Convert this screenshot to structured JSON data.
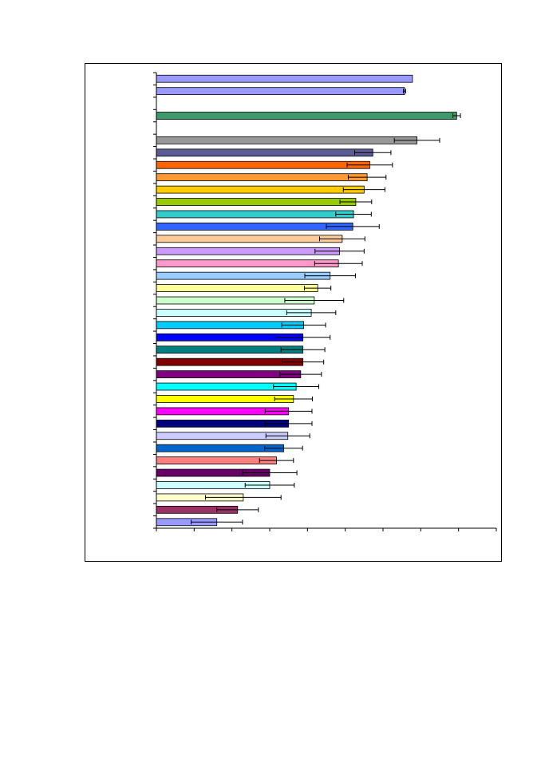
{
  "chart_data": {
    "type": "bar",
    "orientation": "horizontal",
    "title": "",
    "xlabel": "",
    "ylabel": "",
    "xlim": [
      0,
      9
    ],
    "x_tick_step": 1,
    "grid": false,
    "legend": "none",
    "series": [
      {
        "color": "#9999ff",
        "value": 6.78,
        "error": 0.0
      },
      {
        "color": "#9999ff",
        "value": 6.57,
        "error": 0.03
      },
      {
        "color": null,
        "value": null,
        "error": null
      },
      {
        "color": "#3c9a6a",
        "value": 7.95,
        "error": 0.1
      },
      {
        "color": null,
        "value": null,
        "error": null
      },
      {
        "color": "#999999",
        "value": 6.9,
        "error": 0.6
      },
      {
        "color": "#5b5b96",
        "value": 5.73,
        "error": 0.48
      },
      {
        "color": "#ff6600",
        "value": 5.65,
        "error": 0.6
      },
      {
        "color": "#ff9933",
        "value": 5.58,
        "error": 0.5
      },
      {
        "color": "#ffcc00",
        "value": 5.5,
        "error": 0.55
      },
      {
        "color": "#99cc00",
        "value": 5.28,
        "error": 0.42
      },
      {
        "color": "#33cccc",
        "value": 5.22,
        "error": 0.47
      },
      {
        "color": "#3366ff",
        "value": 5.2,
        "error": 0.7
      },
      {
        "color": "#ffcc99",
        "value": 4.92,
        "error": 0.6
      },
      {
        "color": "#cc99ff",
        "value": 4.85,
        "error": 0.65
      },
      {
        "color": "#ff99cc",
        "value": 4.82,
        "error": 0.63
      },
      {
        "color": "#99ccff",
        "value": 4.6,
        "error": 0.67
      },
      {
        "color": "#ffff99",
        "value": 4.27,
        "error": 0.35
      },
      {
        "color": "#ccffcc",
        "value": 4.18,
        "error": 0.78
      },
      {
        "color": "#ccffff",
        "value": 4.1,
        "error": 0.65
      },
      {
        "color": "#00ccff",
        "value": 3.9,
        "error": 0.58
      },
      {
        "color": "#0000ff",
        "value": 3.88,
        "error": 0.72
      },
      {
        "color": "#008080",
        "value": 3.88,
        "error": 0.58
      },
      {
        "color": "#800000",
        "value": 3.88,
        "error": 0.55
      },
      {
        "color": "#800080",
        "value": 3.82,
        "error": 0.55
      },
      {
        "color": "#00ffff",
        "value": 3.7,
        "error": 0.6
      },
      {
        "color": "#ffff00",
        "value": 3.63,
        "error": 0.5
      },
      {
        "color": "#ff00ff",
        "value": 3.5,
        "error": 0.62
      },
      {
        "color": "#000080",
        "value": 3.5,
        "error": 0.62
      },
      {
        "color": "#ccccff",
        "value": 3.48,
        "error": 0.58
      },
      {
        "color": "#0066cc",
        "value": 3.37,
        "error": 0.5
      },
      {
        "color": "#ff8080",
        "value": 3.18,
        "error": 0.45
      },
      {
        "color": "#660066",
        "value": 3.0,
        "error": 0.72
      },
      {
        "color": "#ccffff",
        "value": 3.0,
        "error": 0.65
      },
      {
        "color": "#ffffcc",
        "value": 2.3,
        "error": 1.0
      },
      {
        "color": "#993366",
        "value": 2.15,
        "error": 0.55
      },
      {
        "color": "#9999ff",
        "value": 1.6,
        "error": 0.68
      }
    ]
  }
}
